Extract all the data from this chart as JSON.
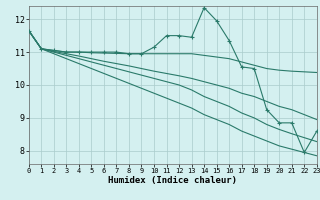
{
  "title": "",
  "xlabel": "Humidex (Indice chaleur)",
  "background_color": "#d4f0f0",
  "grid_color": "#aacccc",
  "line_color": "#2a7a6a",
  "xlim": [
    0,
    23
  ],
  "ylim": [
    7.6,
    12.4
  ],
  "xticks": [
    0,
    1,
    2,
    3,
    4,
    5,
    6,
    7,
    8,
    9,
    10,
    11,
    12,
    13,
    14,
    15,
    16,
    17,
    18,
    19,
    20,
    21,
    22,
    23
  ],
  "yticks": [
    8,
    9,
    10,
    11,
    12
  ],
  "series": [
    {
      "x": [
        0,
        1,
        2,
        3,
        4,
        5,
        6,
        7,
        8,
        9,
        10,
        11,
        12,
        13,
        14,
        15,
        16,
        17,
        18,
        19,
        20,
        21,
        22,
        23
      ],
      "y": [
        11.65,
        11.1,
        11.05,
        11.0,
        11.0,
        11.0,
        11.0,
        11.0,
        10.95,
        10.95,
        11.15,
        11.5,
        11.5,
        11.45,
        12.35,
        11.95,
        11.35,
        10.55,
        10.5,
        9.25,
        8.85,
        8.85,
        7.95,
        8.6
      ],
      "marker": "+"
    },
    {
      "x": [
        0,
        1,
        2,
        3,
        4,
        5,
        6,
        7,
        8,
        9,
        10,
        11,
        12,
        13,
        14,
        15,
        16,
        17,
        18,
        19,
        20,
        21,
        22,
        23
      ],
      "y": [
        11.65,
        11.1,
        11.05,
        11.0,
        11.0,
        10.98,
        10.97,
        10.96,
        10.95,
        10.95,
        10.95,
        10.95,
        10.95,
        10.95,
        10.9,
        10.85,
        10.8,
        10.7,
        10.6,
        10.5,
        10.45,
        10.42,
        10.4,
        10.38
      ],
      "marker": null
    },
    {
      "x": [
        0,
        1,
        2,
        3,
        4,
        5,
        6,
        7,
        8,
        9,
        10,
        11,
        12,
        13,
        14,
        15,
        16,
        17,
        18,
        19,
        20,
        21,
        22,
        23
      ],
      "y": [
        11.65,
        11.1,
        11.0,
        10.9,
        10.8,
        10.7,
        10.6,
        10.5,
        10.4,
        10.3,
        10.2,
        10.1,
        10.0,
        9.85,
        9.65,
        9.5,
        9.35,
        9.15,
        9.0,
        8.8,
        8.65,
        8.52,
        8.4,
        8.28
      ],
      "marker": null
    },
    {
      "x": [
        0,
        1,
        2,
        3,
        4,
        5,
        6,
        7,
        8,
        9,
        10,
        11,
        12,
        13,
        14,
        15,
        16,
        17,
        18,
        19,
        20,
        21,
        22,
        23
      ],
      "y": [
        11.65,
        11.1,
        10.95,
        10.8,
        10.65,
        10.5,
        10.35,
        10.2,
        10.05,
        9.9,
        9.75,
        9.6,
        9.45,
        9.3,
        9.1,
        8.95,
        8.8,
        8.6,
        8.45,
        8.3,
        8.15,
        8.05,
        7.95,
        7.85
      ],
      "marker": null
    },
    {
      "x": [
        0,
        1,
        2,
        3,
        4,
        5,
        6,
        7,
        8,
        9,
        10,
        11,
        12,
        13,
        14,
        15,
        16,
        17,
        18,
        19,
        20,
        21,
        22,
        23
      ],
      "y": [
        11.65,
        11.1,
        11.02,
        10.95,
        10.88,
        10.8,
        10.72,
        10.65,
        10.58,
        10.5,
        10.42,
        10.35,
        10.28,
        10.2,
        10.1,
        10.0,
        9.9,
        9.75,
        9.65,
        9.5,
        9.35,
        9.25,
        9.1,
        8.95
      ],
      "marker": null
    }
  ]
}
